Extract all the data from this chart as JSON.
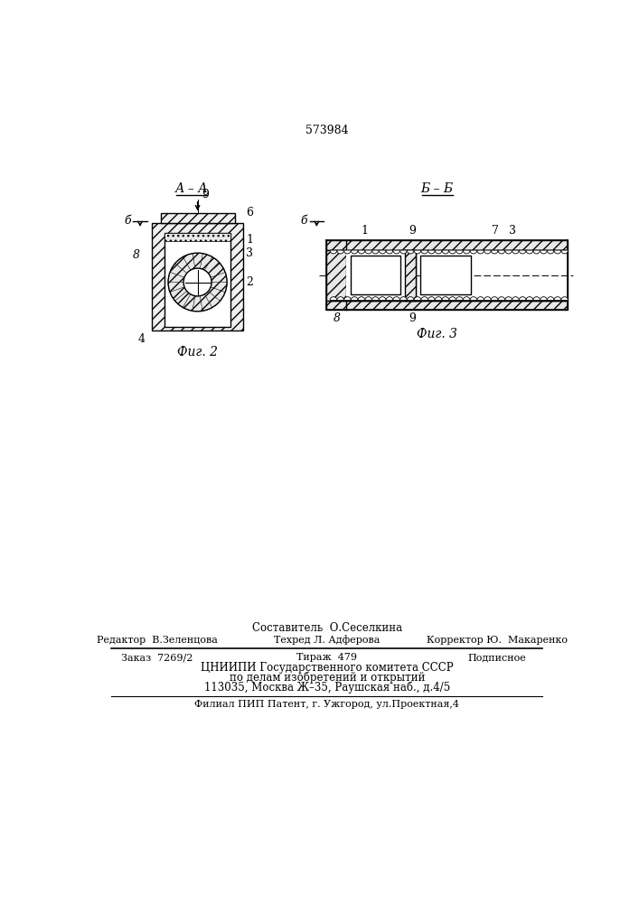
{
  "bg_color": "#ffffff",
  "patent_number": "573984",
  "fig2_title": "А – А",
  "fig3_title": "Б – Б",
  "fig2_caption": "Фиг. 2",
  "fig3_caption": "Фиг. 3",
  "footer_line1": "Составитель  О.Сеселкина",
  "footer_line2_col1": "Редактор  В.Зеленцова",
  "footer_line2_col2": "Техред Л. Адферова",
  "footer_line2_col3": "Корректор Ю.  Макаренко",
  "footer_line3_col1": "Заказ  7269/2",
  "footer_line3_col2": "Тираж  479",
  "footer_line3_col3": "Подписное",
  "footer_line4": "ЦНИИПИ Государственного комитета СССР",
  "footer_line5": "по делам изобретений и открытий",
  "footer_line6": "113035, Москва Ж–35, Раушская наб., д.4/5",
  "footer_line7": "Филиал ПИП Патент, г. Ужгород, ул.Проектная,4",
  "line_color": "#000000"
}
